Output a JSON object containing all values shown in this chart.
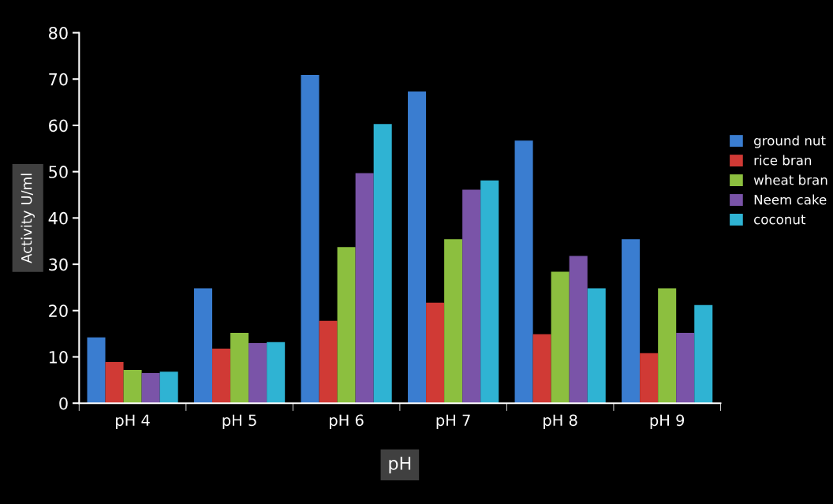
{
  "chart_data": {
    "type": "bar",
    "xlabel": "pH",
    "ylabel": "Activity U/ml",
    "categories": [
      "pH 4",
      "pH 5",
      "pH 6",
      "pH 7",
      "pH 8",
      "pH 9"
    ],
    "series": [
      {
        "name": "ground nut",
        "color": "#3a7dd0",
        "values": [
          14.2,
          24.8,
          70.9,
          67.3,
          56.7,
          35.4
        ]
      },
      {
        "name": "rice bran",
        "color": "#d03a35",
        "values": [
          8.9,
          11.8,
          17.8,
          21.7,
          14.9,
          10.8
        ]
      },
      {
        "name": "wheat bran",
        "color": "#8cbf3f",
        "values": [
          7.2,
          15.2,
          33.7,
          35.4,
          28.4,
          24.8
        ]
      },
      {
        "name": "Neem cake",
        "color": "#7a54a8",
        "values": [
          6.5,
          13.0,
          49.7,
          46.1,
          31.8,
          15.2
        ]
      },
      {
        "name": "coconut",
        "color": "#2fb3d3",
        "values": [
          6.8,
          13.2,
          60.3,
          48.1,
          24.8,
          21.2
        ]
      }
    ],
    "ylim": [
      0,
      80
    ],
    "yticks": [
      0,
      10,
      20,
      30,
      40,
      50,
      60,
      70,
      80
    ],
    "grid": false,
    "legend": "right"
  }
}
